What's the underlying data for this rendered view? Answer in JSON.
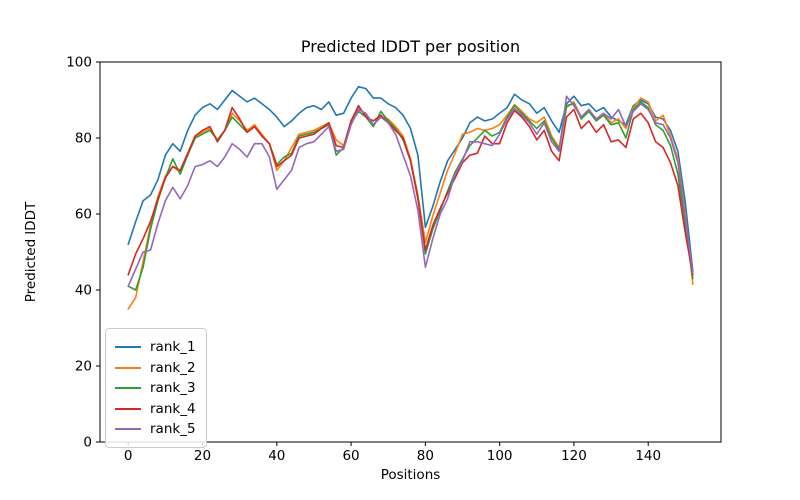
{
  "figure": {
    "title": "Predicted lDDT per position",
    "xlabel": "Positions",
    "ylabel": "Predicted lDDT"
  },
  "chart_data": {
    "type": "line",
    "title": "Predicted lDDT per position",
    "xlabel": "Positions",
    "ylabel": "Predicted lDDT",
    "xlim": [
      -7.6,
      159.6
    ],
    "ylim": [
      0,
      100
    ],
    "xticks": [
      0,
      20,
      40,
      60,
      80,
      100,
      120,
      140
    ],
    "yticks": [
      0,
      20,
      40,
      60,
      80,
      100
    ],
    "grid": false,
    "legend_position": "lower left",
    "x": [
      0,
      2,
      4,
      6,
      8,
      10,
      12,
      14,
      16,
      18,
      20,
      22,
      24,
      26,
      28,
      30,
      32,
      34,
      36,
      38,
      40,
      42,
      44,
      46,
      48,
      50,
      52,
      54,
      56,
      58,
      60,
      62,
      64,
      66,
      68,
      70,
      72,
      74,
      76,
      78,
      80,
      82,
      84,
      86,
      88,
      90,
      92,
      94,
      96,
      98,
      100,
      102,
      104,
      106,
      108,
      110,
      112,
      114,
      116,
      118,
      120,
      122,
      124,
      126,
      128,
      130,
      132,
      134,
      136,
      138,
      140,
      142,
      144,
      146,
      148,
      150,
      152
    ],
    "series": [
      {
        "name": "rank_1",
        "color": "#1f77b4",
        "values": [
          52,
          58,
          63.5,
          65,
          69,
          75.5,
          78.5,
          76.5,
          82,
          86,
          88,
          89,
          87.5,
          90,
          92.5,
          91,
          89.5,
          90.5,
          89,
          87.5,
          85.5,
          83,
          84.5,
          86.5,
          88,
          88.5,
          87.5,
          89.5,
          86,
          86.5,
          90.5,
          93.5,
          93,
          90.5,
          90.5,
          89,
          88,
          86,
          82.5,
          75.5,
          56.5,
          62,
          68.5,
          74,
          77,
          80,
          84,
          85.5,
          84.5,
          85,
          86.5,
          88,
          91.5,
          90,
          89,
          86.5,
          88,
          84.5,
          81.5,
          89,
          91,
          88.5,
          89,
          87,
          88,
          85.5,
          84.5,
          83.5,
          88.5,
          90,
          89,
          85.5,
          85,
          82,
          76.5,
          63,
          45
        ]
      },
      {
        "name": "rank_2",
        "color": "#ff7f0e",
        "values": [
          35,
          38,
          47.5,
          57,
          64.5,
          70,
          72.5,
          71,
          75.5,
          80.5,
          81.5,
          82.5,
          79.5,
          82,
          86.5,
          84.5,
          82,
          83.5,
          81,
          78.5,
          71.5,
          74,
          77.5,
          81,
          81.5,
          82,
          83,
          84,
          79.5,
          78,
          84.5,
          88,
          86,
          83.5,
          85.5,
          85,
          83,
          80.5,
          74.5,
          65,
          52.5,
          59.5,
          65.5,
          71.5,
          76,
          81,
          81.5,
          82.5,
          82,
          82.5,
          83.5,
          86,
          88.8,
          87,
          85,
          84,
          85.5,
          80.5,
          77.5,
          88,
          89.5,
          85.5,
          87.5,
          85,
          86.5,
          84,
          85,
          82.5,
          88,
          90.5,
          89.5,
          84.5,
          86,
          80.5,
          74.5,
          60,
          41.5
        ]
      },
      {
        "name": "rank_3",
        "color": "#2ca02c",
        "values": [
          41,
          40,
          46,
          56,
          63.5,
          69.5,
          74.5,
          70.5,
          75.5,
          80,
          81,
          82,
          79.5,
          82,
          85.5,
          83.5,
          81.5,
          83,
          80.5,
          78.5,
          73,
          75,
          76,
          80.5,
          81,
          81.5,
          82.5,
          83.5,
          75.5,
          77.5,
          84,
          87,
          85.5,
          83,
          87,
          84.5,
          82.5,
          79.5,
          74,
          64.5,
          49.5,
          56,
          61,
          66,
          71,
          74.5,
          78,
          80,
          82,
          80.5,
          81.5,
          85.5,
          88.5,
          86.5,
          84.5,
          82.5,
          84.5,
          80,
          77,
          88.5,
          89,
          85,
          87,
          84.5,
          86,
          83.5,
          84,
          80,
          87.5,
          89.5,
          88,
          83.5,
          82,
          78,
          70.5,
          57,
          43
        ]
      },
      {
        "name": "rank_4",
        "color": "#d62728",
        "values": [
          44,
          49.5,
          53.5,
          58,
          64,
          69.5,
          72.5,
          71.5,
          76,
          80.5,
          82,
          83,
          79,
          82,
          88,
          85,
          81.5,
          83,
          80.5,
          78.5,
          72.5,
          74,
          75.5,
          80,
          80.5,
          81,
          82.5,
          84,
          78,
          77.5,
          84.5,
          88.5,
          85.5,
          84.5,
          86,
          84,
          82,
          80,
          74,
          64,
          50.5,
          57,
          61.5,
          65.5,
          69.5,
          73.5,
          75.5,
          76,
          80.5,
          78.5,
          78.5,
          84,
          87.2,
          85.5,
          83,
          79.5,
          82,
          76.5,
          74,
          85.5,
          87.5,
          82.5,
          84.5,
          81.5,
          83.5,
          79,
          79.5,
          77.5,
          85,
          86.5,
          84,
          79,
          77.5,
          73.5,
          67.5,
          55,
          44
        ]
      },
      {
        "name": "rank_5",
        "color": "#9467bd",
        "values": [
          41,
          45.5,
          50,
          50.5,
          57.5,
          63.5,
          67,
          64,
          67.5,
          72.5,
          73,
          74,
          72.5,
          75,
          78.5,
          77,
          75,
          78.5,
          78.5,
          75,
          66.5,
          69,
          71.5,
          77.5,
          78.5,
          79,
          81,
          83,
          76.5,
          77,
          83.5,
          87.5,
          86.5,
          83.5,
          85.5,
          84,
          81,
          75.5,
          70,
          61,
          46,
          53.5,
          60,
          64,
          70.5,
          74,
          79,
          79,
          78.5,
          78,
          81,
          85,
          87.7,
          86,
          84,
          81,
          84,
          79,
          76.5,
          91,
          88.5,
          85.5,
          87.5,
          85,
          86.5,
          85,
          87.5,
          83,
          87,
          89,
          87.5,
          84,
          83.5,
          80,
          73.5,
          59,
          44.5
        ]
      }
    ]
  }
}
